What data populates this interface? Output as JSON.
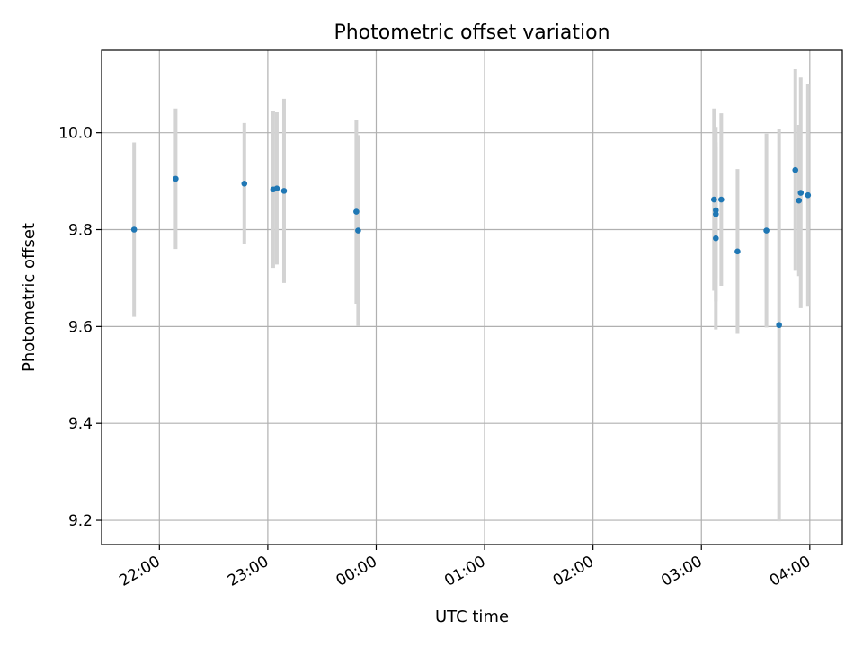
{
  "chart_data": {
    "type": "scatter",
    "title": "Photometric offset variation",
    "xlabel": "UTC time",
    "ylabel": "Photometric offset",
    "x_ticks": [
      "22:00",
      "23:00",
      "00:00",
      "01:00",
      "02:00",
      "03:00",
      "04:00"
    ],
    "y_ticks": [
      "9.2",
      "9.4",
      "9.6",
      "9.8",
      "10.0"
    ],
    "ylim": [
      9.15,
      10.17
    ],
    "xlim": [
      "21:28",
      "04:18"
    ],
    "grid": true,
    "point_color": "#1f77b4",
    "errorbar_color": "#d3d3d3",
    "points": [
      {
        "x": "21:46",
        "y": 9.8,
        "err": 0.18
      },
      {
        "x": "22:09",
        "y": 9.905,
        "err": 0.145
      },
      {
        "x": "22:47",
        "y": 9.895,
        "err": 0.125
      },
      {
        "x": "23:03",
        "y": 9.883,
        "err": 0.162
      },
      {
        "x": "23:05",
        "y": 9.885,
        "err": 0.157
      },
      {
        "x": "23:09",
        "y": 9.88,
        "err": 0.19
      },
      {
        "x": "23:49",
        "y": 9.837,
        "err": 0.19
      },
      {
        "x": "23:50",
        "y": 9.798,
        "err": 0.197
      },
      {
        "x": "03:07",
        "y": 9.862,
        "err": 0.188
      },
      {
        "x": "03:08",
        "y": 9.84,
        "err": 0.14
      },
      {
        "x": "03:08",
        "y": 9.832,
        "err": 0.18
      },
      {
        "x": "03:08",
        "y": 9.782,
        "err": 0.188
      },
      {
        "x": "03:11",
        "y": 9.862,
        "err": 0.178
      },
      {
        "x": "03:20",
        "y": 9.755,
        "err": 0.17
      },
      {
        "x": "03:36",
        "y": 9.798,
        "err": 0.2
      },
      {
        "x": "03:43",
        "y": 9.603,
        "err": 0.405
      },
      {
        "x": "03:52",
        "y": 9.923,
        "err": 0.208
      },
      {
        "x": "03:54",
        "y": 9.86,
        "err": 0.156
      },
      {
        "x": "03:55",
        "y": 9.876,
        "err": 0.238
      },
      {
        "x": "03:59",
        "y": 9.871,
        "err": 0.23
      }
    ]
  }
}
